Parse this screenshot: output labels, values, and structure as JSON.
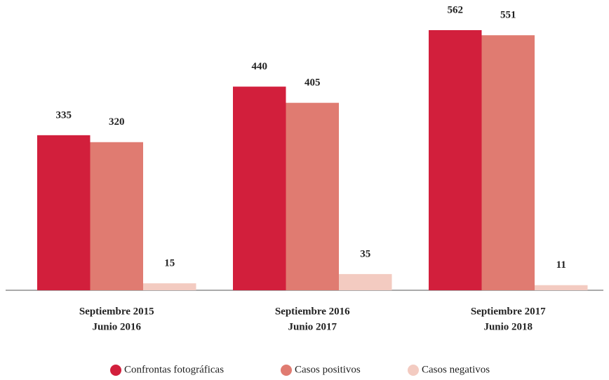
{
  "chart_data": {
    "type": "bar",
    "categories": [
      [
        "Septiembre 2015",
        "Junio 2016"
      ],
      [
        "Septiembre 2016",
        "Junio 2017"
      ],
      [
        "Septiembre 2017",
        "Junio 2018"
      ]
    ],
    "series": [
      {
        "name": "Confrontas fotográficas",
        "color": "#d21f3c",
        "values": [
          335,
          440,
          562
        ]
      },
      {
        "name": "Casos positivos",
        "color": "#e07b71",
        "values": [
          320,
          405,
          551
        ]
      },
      {
        "name": "Casos negativos",
        "color": "#f3cbc1",
        "values": [
          15,
          35,
          11
        ]
      }
    ],
    "legend": "bottom"
  }
}
